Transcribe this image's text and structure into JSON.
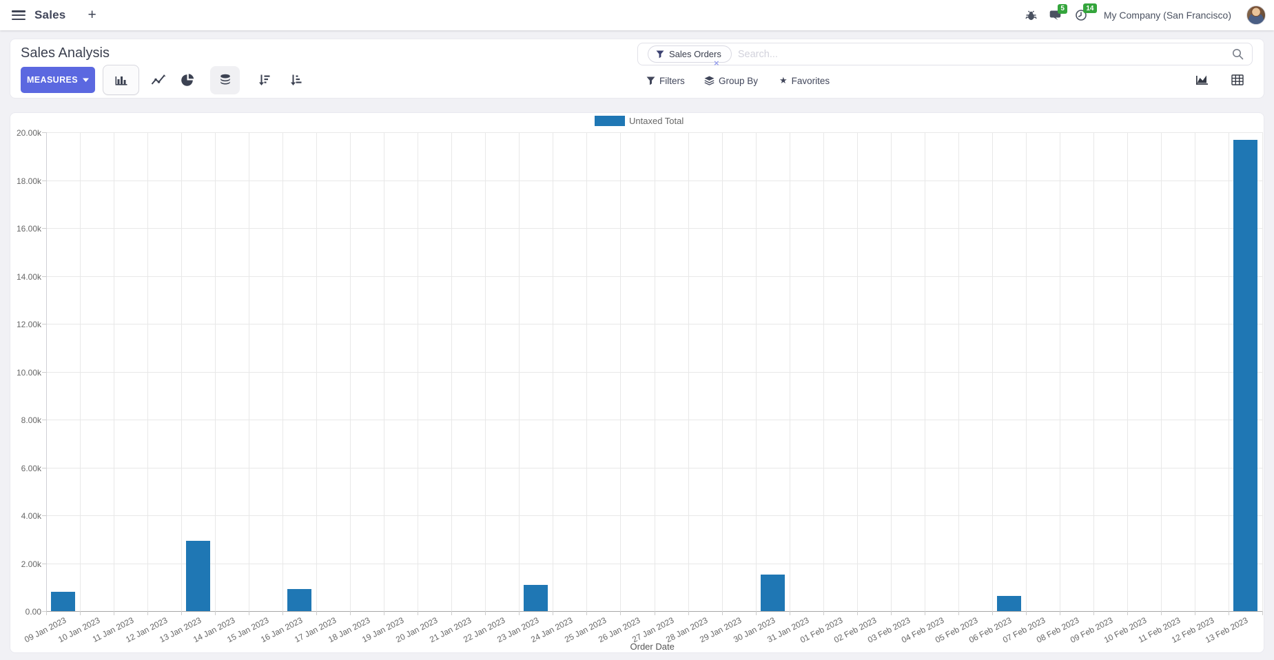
{
  "navbar": {
    "app_name": "Sales",
    "new_tab_label": "+",
    "messages_badge": "5",
    "activities_badge": "14",
    "company": "My Company (San Francisco)"
  },
  "control_panel": {
    "title": "Sales Analysis",
    "measures_label": "MEASURES",
    "search": {
      "facet": "Sales Orders",
      "facet_remove": "×",
      "placeholder": "Search..."
    },
    "filters_label": "Filters",
    "group_by_label": "Group By",
    "favorites_label": "Favorites",
    "favorites_star": "★",
    "toolbar_icons": [
      "bar-chart-icon",
      "line-chart-icon",
      "pie-chart-icon",
      "stacked-icon",
      "sort-descending-icon",
      "sort-ascending-icon"
    ],
    "view_switcher_icons": [
      "graph-view-icon",
      "pivot-view-icon"
    ]
  },
  "colors": {
    "primary": "#5b68e0",
    "bar": "#1f77b4",
    "badge_green": "#34a53c"
  },
  "chart_data": {
    "type": "bar",
    "title": "",
    "xlabel": "Order Date",
    "ylabel": "",
    "legend_position": "top",
    "grid": true,
    "ylim": [
      0,
      20000
    ],
    "ytick_step": 2000,
    "ytick_labels": [
      "0.00",
      "2.00k",
      "4.00k",
      "6.00k",
      "8.00k",
      "10.00k",
      "12.00k",
      "14.00k",
      "16.00k",
      "18.00k",
      "20.00k"
    ],
    "categories": [
      "09 Jan 2023",
      "10 Jan 2023",
      "11 Jan 2023",
      "12 Jan 2023",
      "13 Jan 2023",
      "14 Jan 2023",
      "15 Jan 2023",
      "16 Jan 2023",
      "17 Jan 2023",
      "18 Jan 2023",
      "19 Jan 2023",
      "20 Jan 2023",
      "21 Jan 2023",
      "22 Jan 2023",
      "23 Jan 2023",
      "24 Jan 2023",
      "25 Jan 2023",
      "26 Jan 2023",
      "27 Jan 2023",
      "28 Jan 2023",
      "29 Jan 2023",
      "30 Jan 2023",
      "31 Jan 2023",
      "01 Feb 2023",
      "02 Feb 2023",
      "03 Feb 2023",
      "04 Feb 2023",
      "05 Feb 2023",
      "06 Feb 2023",
      "07 Feb 2023",
      "08 Feb 2023",
      "09 Feb 2023",
      "10 Feb 2023",
      "11 Feb 2023",
      "12 Feb 2023",
      "13 Feb 2023"
    ],
    "series": [
      {
        "name": "Untaxed Total",
        "color": "#1f77b4",
        "values": [
          810,
          0,
          0,
          0,
          2930,
          0,
          0,
          920,
          0,
          0,
          0,
          0,
          0,
          0,
          1090,
          0,
          0,
          0,
          0,
          0,
          0,
          1520,
          0,
          0,
          0,
          0,
          0,
          0,
          630,
          0,
          0,
          0,
          0,
          0,
          0,
          19680
        ]
      }
    ]
  }
}
